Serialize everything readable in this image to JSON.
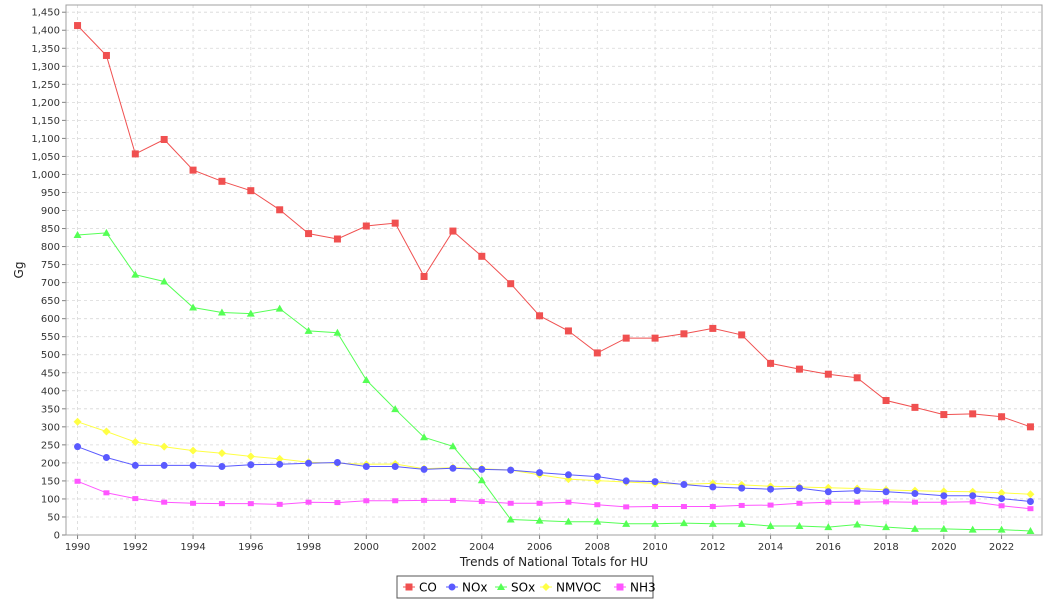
{
  "chart_data": {
    "type": "line",
    "title": "",
    "xlabel": "Trends of National Totals for HU",
    "ylabel": "Gg",
    "x": [
      1990,
      1991,
      1992,
      1993,
      1994,
      1995,
      1996,
      1997,
      1998,
      1999,
      2000,
      2001,
      2002,
      2003,
      2004,
      2005,
      2006,
      2007,
      2008,
      2009,
      2010,
      2011,
      2012,
      2013,
      2014,
      2015,
      2016,
      2017,
      2018,
      2019,
      2020,
      2021,
      2022,
      2023
    ],
    "x_ticks": [
      1990,
      1992,
      1994,
      1996,
      1998,
      2000,
      2002,
      2004,
      2006,
      2008,
      2010,
      2012,
      2014,
      2016,
      2018,
      2020,
      2022
    ],
    "ylim": [
      0,
      1470
    ],
    "y_tick_step": 50,
    "grid": true,
    "legend_position": "bottom-center",
    "series": [
      {
        "name": "CO",
        "color": "#f05050",
        "marker": "square",
        "values": [
          1413,
          1330,
          1057,
          1097,
          1012,
          981,
          955,
          902,
          836,
          821,
          857,
          865,
          717,
          843,
          773,
          697,
          608,
          566,
          505,
          546,
          546,
          558,
          573,
          555,
          476,
          460,
          446,
          436,
          373,
          354,
          334,
          336,
          328,
          300
        ]
      },
      {
        "name": "NOx",
        "color": "#5a5aff",
        "marker": "circle",
        "values": [
          245,
          215,
          193,
          193,
          193,
          190,
          195,
          196,
          199,
          201,
          190,
          190,
          182,
          185,
          182,
          180,
          173,
          167,
          162,
          150,
          148,
          140,
          133,
          130,
          127,
          130,
          120,
          123,
          120,
          115,
          109,
          109,
          101,
          93
        ]
      },
      {
        "name": "SOx",
        "color": "#55ff55",
        "marker": "triangle",
        "values": [
          832,
          838,
          722,
          703,
          631,
          617,
          614,
          628,
          566,
          561,
          430,
          349,
          271,
          246,
          152,
          43,
          40,
          37,
          37,
          31,
          31,
          33,
          31,
          31,
          25,
          25,
          22,
          29,
          22,
          17,
          17,
          15,
          15,
          11
        ]
      },
      {
        "name": "NMVOC",
        "color": "#ffff44",
        "marker": "diamond",
        "values": [
          314,
          287,
          258,
          245,
          234,
          227,
          218,
          211,
          202,
          199,
          196,
          197,
          184,
          187,
          184,
          180,
          167,
          155,
          151,
          147,
          143,
          141,
          143,
          139,
          135,
          133,
          131,
          129,
          125,
          123,
          121,
          120,
          117,
          113
        ]
      },
      {
        "name": "NH3",
        "color": "#ff55ff",
        "marker": "square-small",
        "values": [
          149,
          117,
          101,
          91,
          88,
          87,
          87,
          85,
          91,
          90,
          95,
          95,
          96,
          96,
          93,
          88,
          88,
          91,
          84,
          78,
          79,
          79,
          79,
          82,
          83,
          88,
          91,
          91,
          92,
          91,
          91,
          92,
          81,
          73
        ]
      }
    ]
  }
}
